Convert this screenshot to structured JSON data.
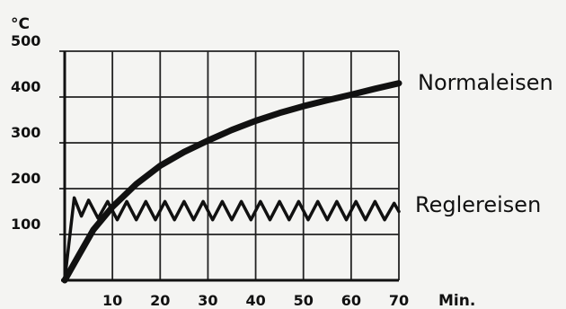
{
  "chart_data": {
    "type": "line",
    "y_unit": "°C",
    "x_unit": "Min.",
    "xlim": [
      0,
      70
    ],
    "ylim": [
      0,
      500
    ],
    "x_ticks": [
      "10",
      "20",
      "30",
      "40",
      "50",
      "60",
      "70"
    ],
    "y_ticks": [
      "100",
      "200",
      "300",
      "400",
      "500"
    ],
    "grid": true,
    "series": [
      {
        "name": "Normaleisen",
        "x": [
          0,
          3,
          6,
          10,
          15,
          20,
          25,
          30,
          35,
          40,
          45,
          50,
          55,
          60,
          65,
          70
        ],
        "y": [
          0,
          55,
          110,
          160,
          210,
          250,
          280,
          305,
          328,
          348,
          365,
          380,
          393,
          405,
          418,
          430
        ]
      },
      {
        "name": "Reglereisen",
        "x": [
          0,
          2,
          3.5,
          5,
          7,
          9,
          11,
          13,
          15,
          17,
          19,
          21,
          23,
          25,
          27,
          29,
          31,
          33,
          35,
          37,
          39,
          41,
          43,
          45,
          47,
          49,
          51,
          53,
          55,
          57,
          59,
          61,
          63,
          65,
          67,
          69,
          70
        ],
        "y": [
          0,
          180,
          140,
          175,
          135,
          172,
          132,
          172,
          132,
          172,
          132,
          172,
          132,
          172,
          132,
          172,
          132,
          172,
          132,
          172,
          132,
          172,
          132,
          172,
          132,
          172,
          132,
          172,
          132,
          172,
          132,
          172,
          132,
          172,
          132,
          168,
          150
        ]
      }
    ]
  }
}
